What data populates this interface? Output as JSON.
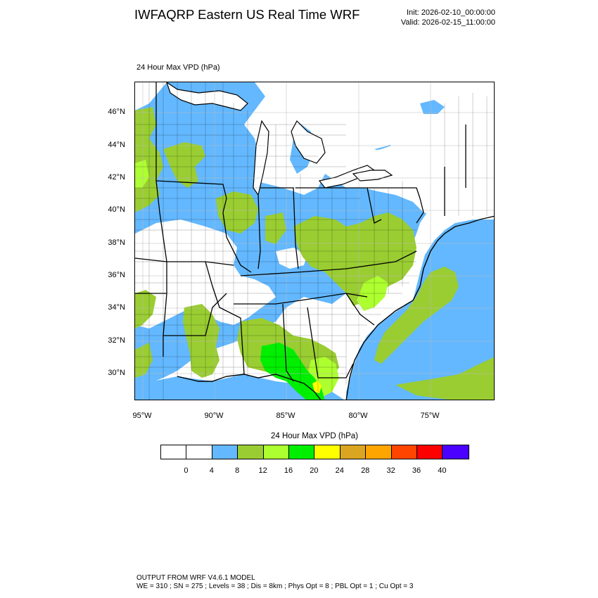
{
  "header": {
    "title": "IWFAQRP Eastern US Real Time WRF",
    "init": "Init: 2026-02-10_00:00:00",
    "valid": "Valid: 2026-02-15_11:00:00"
  },
  "map": {
    "label": "24 Hour Max VPD   (hPa)",
    "lat_labels": [
      "46°N",
      "44°N",
      "42°N",
      "40°N",
      "38°N",
      "36°N",
      "34°N",
      "32°N",
      "30°N"
    ],
    "lon_labels": [
      "95°W",
      "90°W",
      "85°W",
      "80°W",
      "75°W"
    ],
    "colors": {
      "land_white": "#ffffff",
      "blue": "#63b8ff",
      "olive": "#9acd32",
      "lime": "#adff2f",
      "green": "#00ee00",
      "yellow": "#ffff00",
      "borders": "#000000"
    }
  },
  "colorbar": {
    "title": "24 Hour Max VPD  (hPa)",
    "colors": [
      "#ffffff",
      "#ffffff",
      "#63b8ff",
      "#9acd32",
      "#adff2f",
      "#00ee00",
      "#ffff00",
      "#daa520",
      "#ffa500",
      "#ff4500",
      "#ff0000",
      "#4b00ff"
    ],
    "ticks": [
      "0",
      "4",
      "8",
      "12",
      "16",
      "20",
      "24",
      "28",
      "32",
      "36",
      "40"
    ]
  },
  "footer": {
    "line1": "OUTPUT FROM WRF V4.6.1 MODEL",
    "line2": "WE = 310 ; SN = 275 ; Levels = 38 ; Dis = 8km ; Phys Opt = 8 ; PBL Opt = 1 ; Cu Opt = 3"
  }
}
